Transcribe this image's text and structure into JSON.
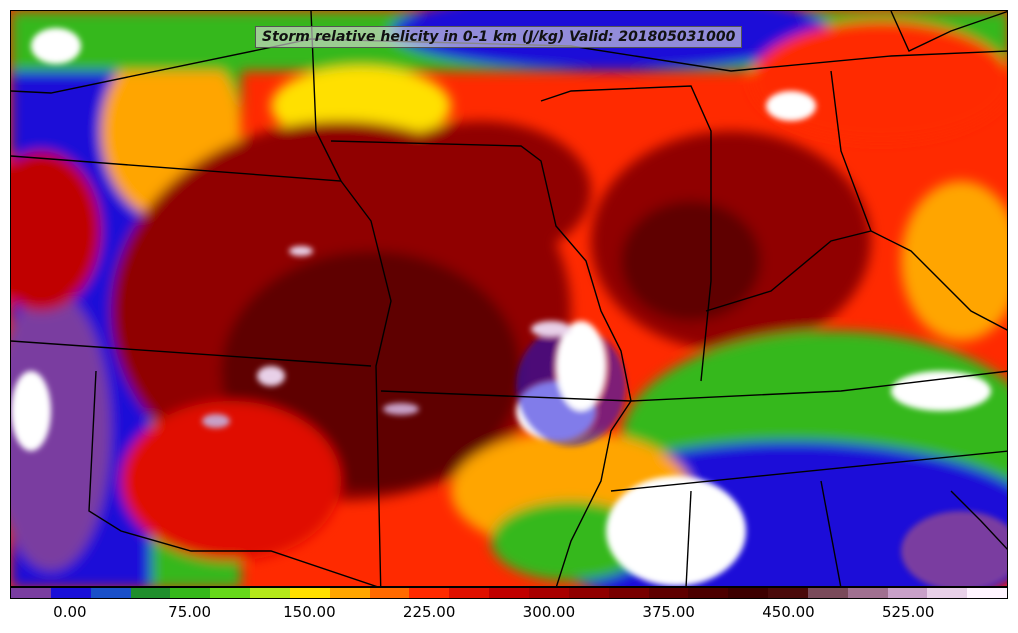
{
  "title": "Storm relative helicity in 0-1 km (J/kg) Valid: 201805031000",
  "legend": {
    "colors": [
      "#7a3da0",
      "#1a10d8",
      "#1a50c8",
      "#1f8f2c",
      "#35b81a",
      "#66d81a",
      "#b4e81a",
      "#ffe000",
      "#ffa500",
      "#ff6a00",
      "#ff2a00",
      "#e01000",
      "#c00000",
      "#a80000",
      "#900000",
      "#780000",
      "#5f0000",
      "#4c0000",
      "#3c0000",
      "#4a0a0a",
      "#7a4a5a",
      "#a07090",
      "#c8a0c8",
      "#e8d0e8",
      "#fff4ff"
    ],
    "ticks": [
      {
        "label": "0.00",
        "value": 0
      },
      {
        "label": "75.00",
        "value": 75
      },
      {
        "label": "150.00",
        "value": 150
      },
      {
        "label": "225.00",
        "value": 225
      },
      {
        "label": "300.00",
        "value": 300
      },
      {
        "label": "375.00",
        "value": 375
      },
      {
        "label": "450.00",
        "value": 450
      },
      {
        "label": "525.00",
        "value": 525
      }
    ],
    "min": -37.5,
    "max": 587.5
  }
}
